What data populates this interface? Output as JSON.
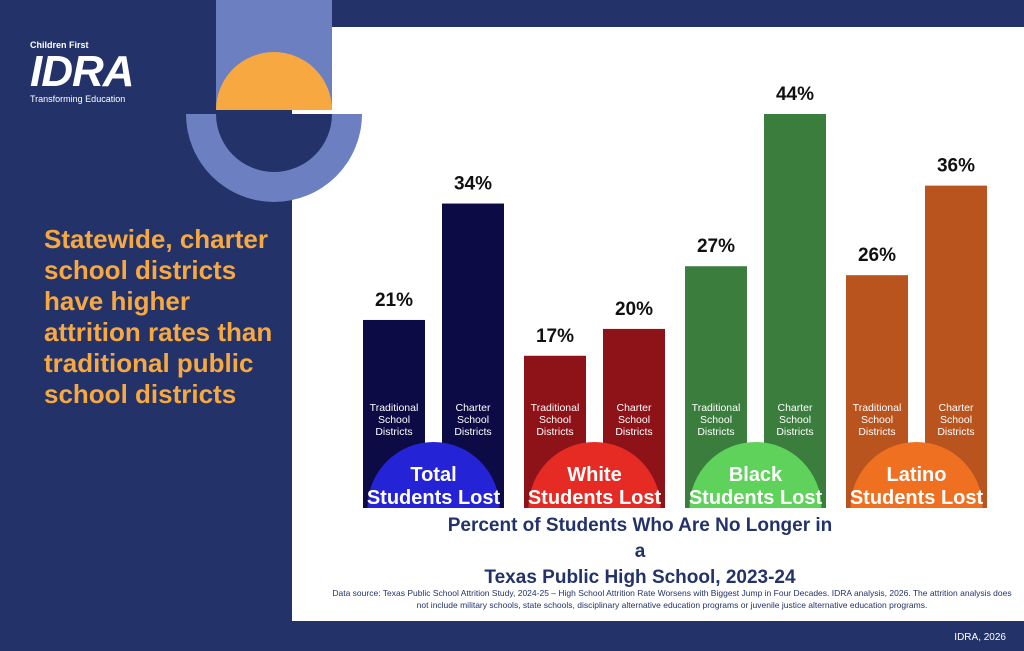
{
  "logo": {
    "top_text": "Children First",
    "main_text": "IDRA",
    "tagline": "Transforming Education"
  },
  "headline": "Statewide, charter school districts have higher attrition rates than traditional public school districts",
  "source_note": "Data source: Texas Public School Attrition Study, 2024-25 – High School Attrition Rate Worsens with Biggest Jump in Four Decades. IDRA analysis, 2026. The attrition analysis does not include military schools, state schools, disciplinary alternative education programs or juvenile justice alternative education programs.",
  "credit": "IDRA, 2026",
  "colors": {
    "background": "#23336a",
    "accent_orange": "#f7a840",
    "deco_blue": "#6c7fc0"
  },
  "chart_data": {
    "type": "bar",
    "title": "Percent of Students Who Are No Longer in a Texas Public High School, 2023-24",
    "title_lines": [
      "Percent of Students Who Are No Longer in a",
      "Texas Public High School, 2023-24"
    ],
    "ylim": [
      0,
      44
    ],
    "groups": [
      {
        "name": "Total Students Lost",
        "label_lines": [
          "Total",
          "Students Lost"
        ],
        "dome_color": "#2424d6",
        "bars": [
          {
            "name": "Traditional School Districts",
            "label_lines": [
              "Traditional",
              "School",
              "Districts"
            ],
            "value": 21,
            "value_label": "21%",
            "color": "#0c0b45"
          },
          {
            "name": "Charter School Districts",
            "label_lines": [
              "Charter",
              "School",
              "Districts"
            ],
            "value": 34,
            "value_label": "34%",
            "color": "#0c0b45"
          }
        ]
      },
      {
        "name": "White Students Lost",
        "label_lines": [
          "White",
          "Students Lost"
        ],
        "dome_color": "#e52b24",
        "bars": [
          {
            "name": "Traditional School Districts",
            "label_lines": [
              "Traditional",
              "School",
              "Districts"
            ],
            "value": 17,
            "value_label": "17%",
            "color": "#8e1318"
          },
          {
            "name": "Charter School Districts",
            "label_lines": [
              "Charter",
              "School",
              "Districts"
            ],
            "value": 20,
            "value_label": "20%",
            "color": "#8e1318"
          }
        ]
      },
      {
        "name": "Black Students Lost",
        "label_lines": [
          "Black",
          "Students Lost"
        ],
        "dome_color": "#5ed25a",
        "bars": [
          {
            "name": "Traditional School Districts",
            "label_lines": [
              "Traditional",
              "School",
              "Districts"
            ],
            "value": 27,
            "value_label": "27%",
            "color": "#3a7d3d"
          },
          {
            "name": "Charter School Districts",
            "label_lines": [
              "Charter",
              "School",
              "Districts"
            ],
            "value": 44,
            "value_label": "44%",
            "color": "#3a7d3d"
          }
        ]
      },
      {
        "name": "Latino Students Lost",
        "label_lines": [
          "Latino",
          "Students Lost"
        ],
        "dome_color": "#f07022",
        "bars": [
          {
            "name": "Traditional School Districts",
            "label_lines": [
              "Traditional",
              "School",
              "Districts"
            ],
            "value": 26,
            "value_label": "26%",
            "color": "#b9541f"
          },
          {
            "name": "Charter School Districts",
            "label_lines": [
              "Charter",
              "School",
              "Districts"
            ],
            "value": 36,
            "value_label": "36%",
            "color": "#b9541f"
          }
        ]
      }
    ]
  }
}
